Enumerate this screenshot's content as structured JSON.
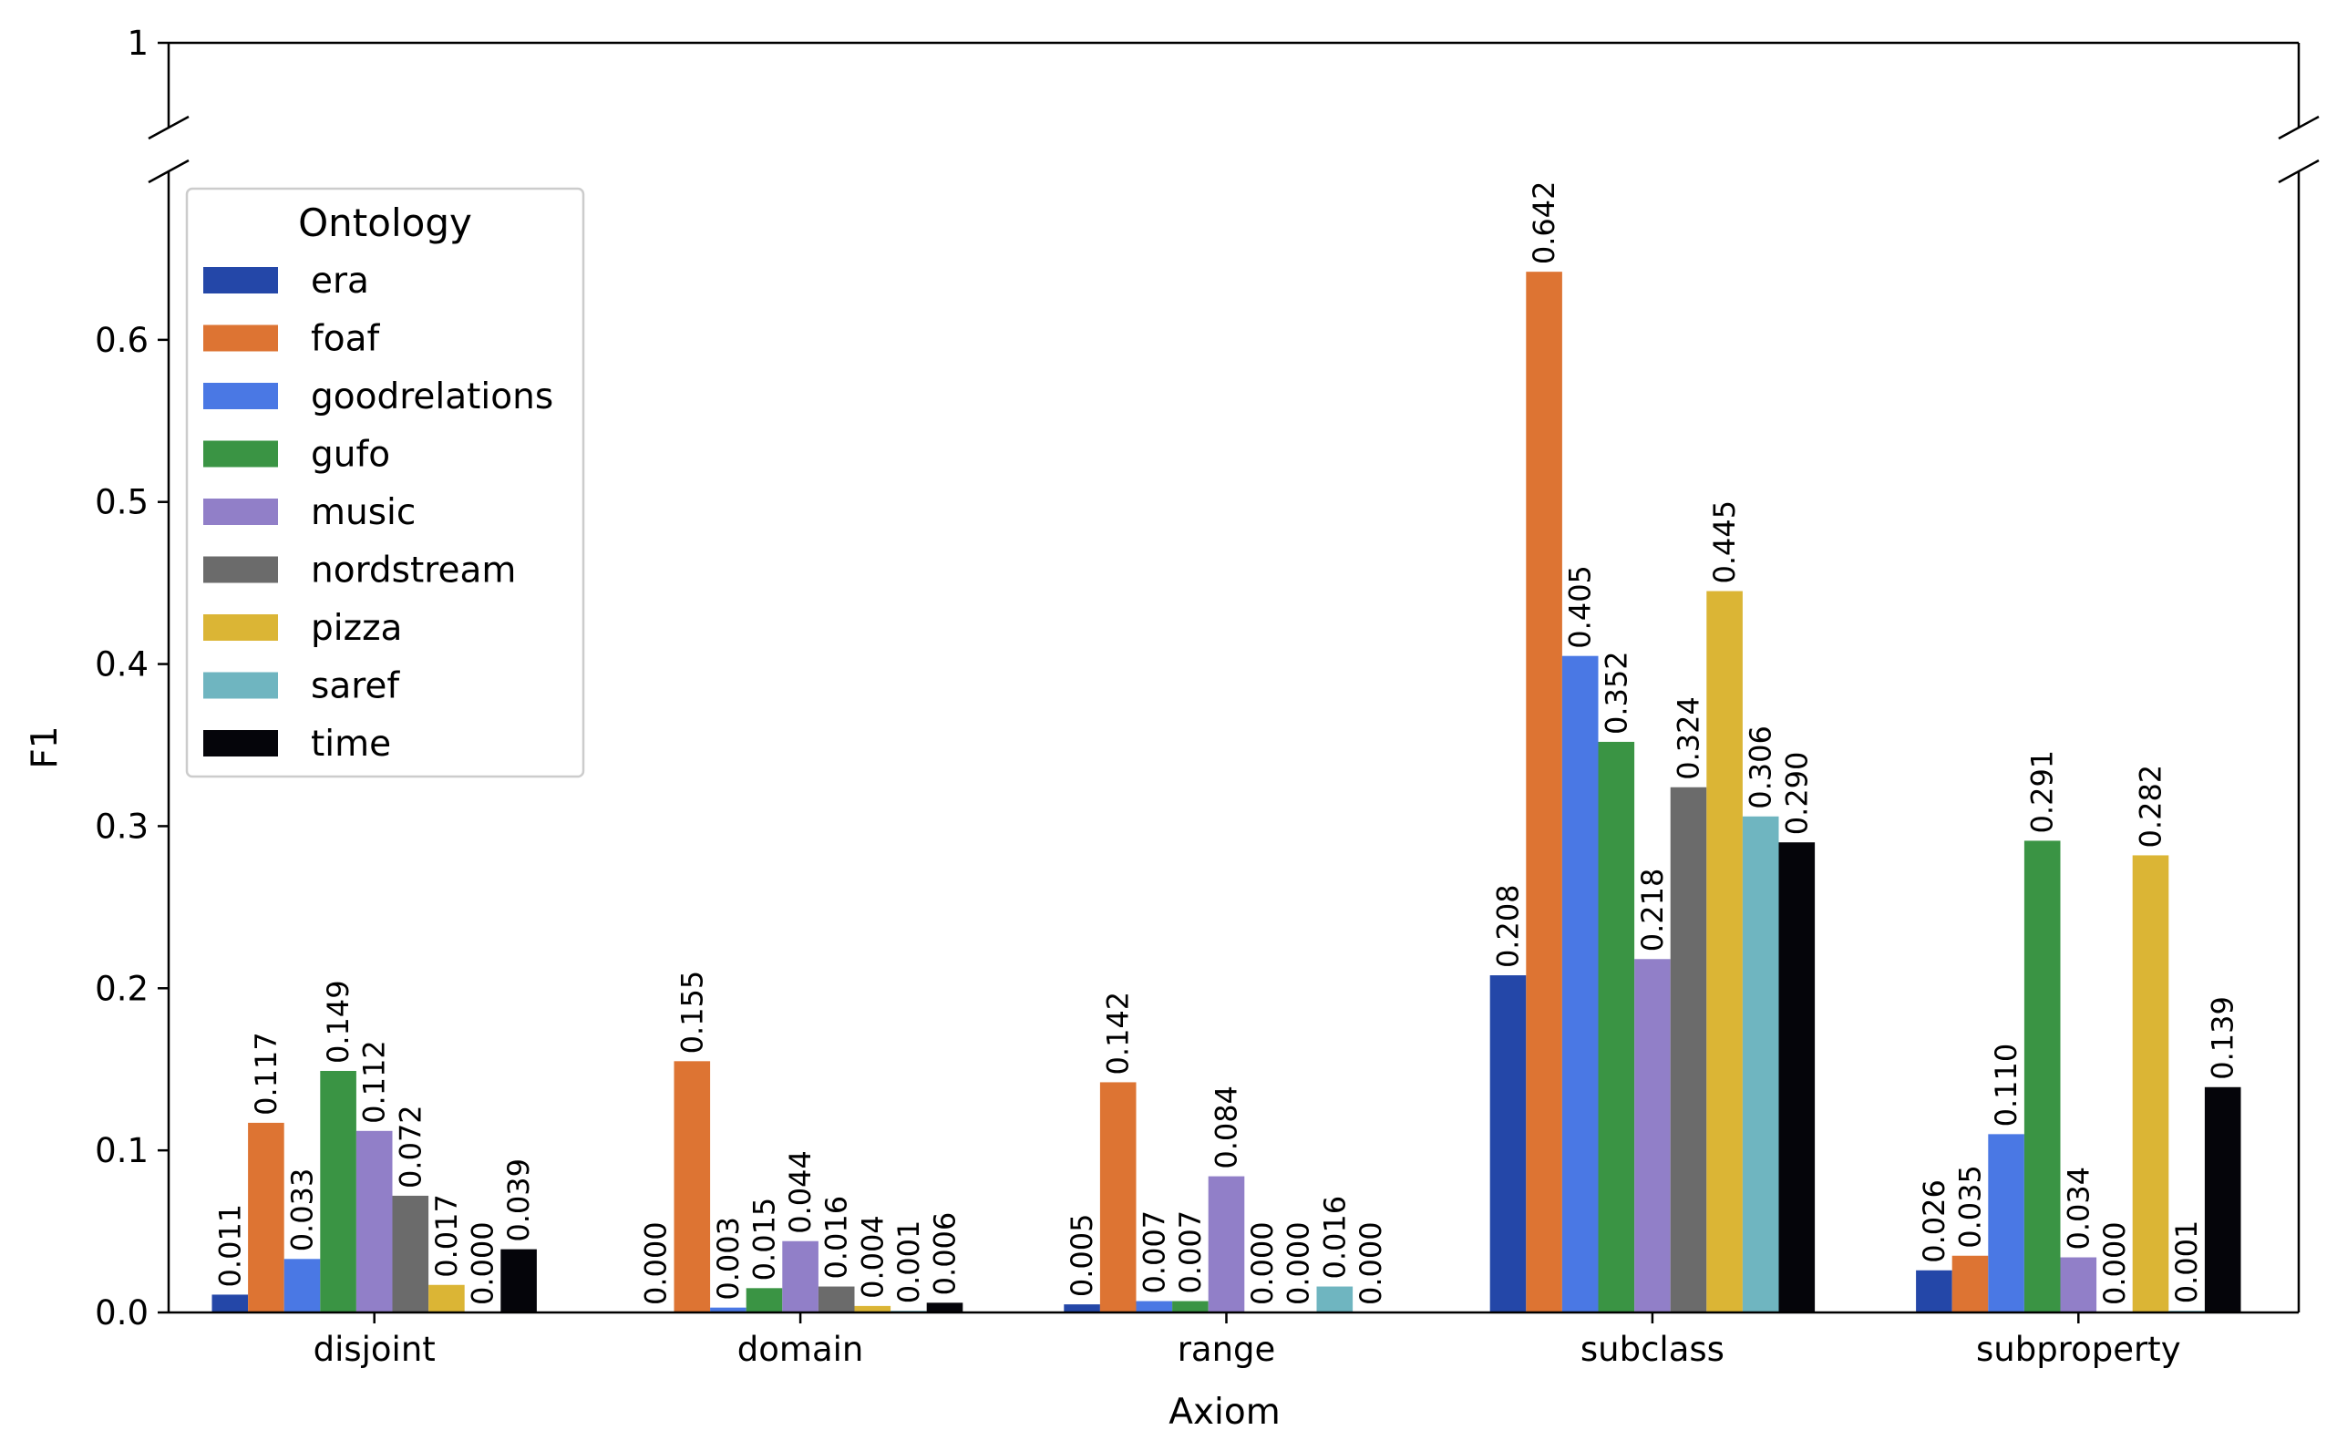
{
  "chart_data": {
    "type": "bar",
    "title": "",
    "xlabel": "Axiom",
    "ylabel": "F1",
    "ylim": [
      0,
      0.7
    ],
    "ylim_broken_top": 1,
    "y_ticks": [
      "0.0",
      "0.1",
      "0.2",
      "0.3",
      "0.4",
      "0.5",
      "0.6"
    ],
    "y_top_tick": "1",
    "categories": [
      "disjoint",
      "domain",
      "range",
      "subclass",
      "subproperty"
    ],
    "legend": {
      "title": "Ontology",
      "placement": "upper-left"
    },
    "series": [
      {
        "name": "era",
        "color": "#2447a8",
        "values": [
          0.011,
          0.0,
          0.005,
          0.208,
          0.026
        ],
        "labels": [
          "0.011",
          "0.000",
          "0.005",
          "0.208",
          "0.026"
        ]
      },
      {
        "name": "foaf",
        "color": "#dd7433",
        "values": [
          0.117,
          0.155,
          0.142,
          0.642,
          0.035
        ],
        "labels": [
          "0.117",
          "0.155",
          "0.142",
          "0.642",
          "0.035"
        ]
      },
      {
        "name": "goodrelations",
        "color": "#4a78e4",
        "values": [
          0.033,
          0.003,
          0.007,
          0.405,
          0.11
        ],
        "labels": [
          "0.033",
          "0.003",
          "0.007",
          "0.405",
          "0.110"
        ]
      },
      {
        "name": "gufo",
        "color": "#3a9444",
        "values": [
          0.149,
          0.015,
          0.007,
          0.352,
          0.291
        ],
        "labels": [
          "0.149",
          "0.015",
          "0.007",
          "0.352",
          "0.291"
        ]
      },
      {
        "name": "music",
        "color": "#917fc8",
        "values": [
          0.112,
          0.044,
          0.084,
          0.218,
          0.034
        ],
        "labels": [
          "0.112",
          "0.044",
          "0.084",
          "0.218",
          "0.034"
        ]
      },
      {
        "name": "nordstream",
        "color": "#6b6b6b",
        "values": [
          0.072,
          0.016,
          0.0,
          0.324,
          0.0
        ],
        "labels": [
          "0.072",
          "0.016",
          "0.000",
          "0.324",
          "0.000"
        ]
      },
      {
        "name": "pizza",
        "color": "#dbb535",
        "values": [
          0.017,
          0.004,
          0.0,
          0.445,
          0.282
        ],
        "labels": [
          "0.017",
          "0.004",
          "0.000",
          "0.445",
          "0.282"
        ]
      },
      {
        "name": "saref",
        "color": "#6fb5c0",
        "values": [
          0.0,
          0.001,
          0.016,
          0.306,
          0.001
        ],
        "labels": [
          "0.000",
          "0.001",
          "0.016",
          "0.306",
          "0.001"
        ]
      },
      {
        "name": "time",
        "color": "#05050a",
        "values": [
          0.039,
          0.006,
          0.0,
          0.29,
          0.139
        ],
        "labels": [
          "0.039",
          "0.006",
          "0.000",
          "0.290",
          "0.139"
        ]
      }
    ]
  }
}
